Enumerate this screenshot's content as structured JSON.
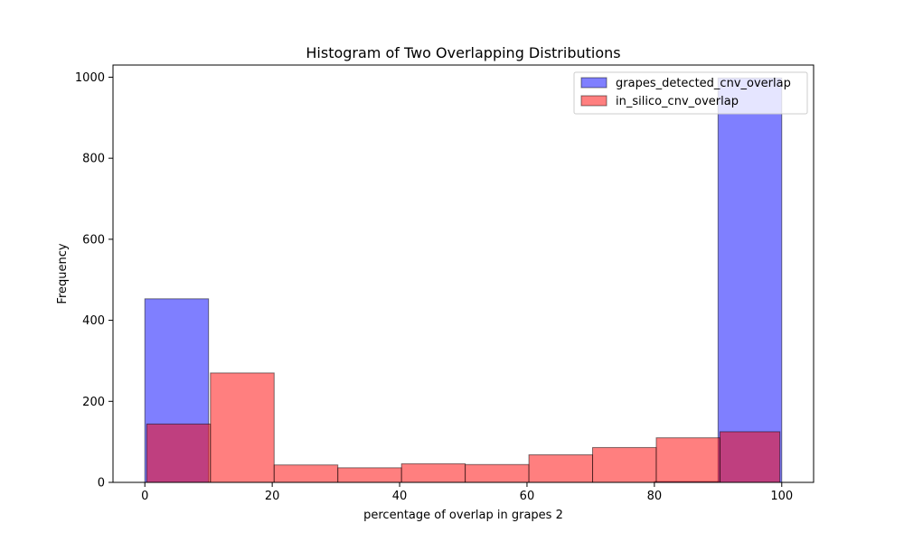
{
  "chart_data": {
    "type": "bar",
    "title": "Histogram of Two Overlapping Distributions",
    "xlabel": "percentage of overlap in grapes 2",
    "ylabel": "Frequency",
    "xlim": [
      -5,
      105
    ],
    "ylim": [
      0,
      1030
    ],
    "xticks": [
      0,
      20,
      40,
      60,
      80,
      100
    ],
    "yticks": [
      0,
      200,
      400,
      600,
      800,
      1000
    ],
    "legend_position": "top-right",
    "alpha": 0.5,
    "series": [
      {
        "name": "grapes_detected_cnv_overlap",
        "color": "#0000ff",
        "bins": [
          0,
          10,
          20,
          30,
          40,
          50,
          60,
          70,
          80,
          90,
          100
        ],
        "values": [
          453,
          0,
          0,
          0,
          0,
          0,
          0,
          0,
          2,
          998
        ]
      },
      {
        "name": "in_silico_cnv_overlap",
        "color": "#ff0000",
        "bins": [
          0.3,
          10.3,
          20.3,
          30.3,
          40.3,
          50.3,
          60.3,
          70.3,
          80.3,
          90.3,
          99.7
        ],
        "values": [
          144,
          270,
          43,
          36,
          46,
          44,
          68,
          86,
          110,
          125
        ]
      }
    ]
  }
}
